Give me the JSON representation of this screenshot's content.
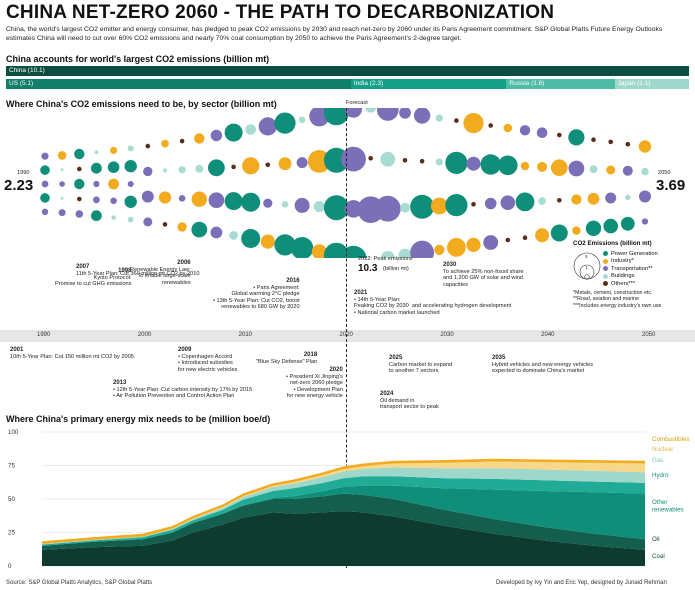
{
  "title": "CHINA NET-ZERO 2060 - THE PATH TO DECARBONIZATION",
  "intro": "China, the world's largest CO2 emitter and energy consumer, has pledged to peak CO2 emissions by 2030 and reach net-zero by 2060 under its Paris Agreement commitment. S&P Global Platts Future Energy Outlooks estimates China will need to cut over 60% CO2 emissions and nearly 70% coal consumption by 2050 to achieve the Paris Agreement's 2-degree target.",
  "colors": {
    "dark_teal": "#0b4e40",
    "teal": "#0f8f7a",
    "mid_teal": "#1aa48d",
    "light_teal": "#8fd1c3",
    "yellow": "#f2ab1f",
    "purple": "#7b6fb8",
    "pale": "#a8dbd1",
    "brown": "#5a2d16"
  },
  "emitters": {
    "title": "China accounts for world's largest CO2 emissions (billion mt)",
    "bars": [
      {
        "label": "China (10.1)",
        "value": 10.1,
        "color": "#0b4e40"
      },
      {
        "label": "US (5.1)",
        "value": 5.1,
        "color": "#0f7f6a"
      },
      {
        "label": "India (2.3)",
        "value": 2.3,
        "color": "#14a088"
      },
      {
        "label": "Russia (1.6)",
        "value": 1.6,
        "color": "#4cbca6"
      },
      {
        "label": "Japan (1.1)",
        "value": 1.1,
        "color": "#9fd7cb"
      }
    ]
  },
  "sector": {
    "title": "Where China's CO2 emissions need to be, by sector (billion mt)",
    "forecast_label": "Forecast",
    "start_year": "1990",
    "start_value": "2.23",
    "end_year": "2050",
    "end_value": "3.69",
    "peak_label": "2022: Peak emissions",
    "peak_value": "10.3",
    "peak_unit": "(billion mt)",
    "legend_title": "CO2 Emissions (billion mt)",
    "legend_scale": [
      "5",
      "1",
      ".1"
    ],
    "legend": [
      {
        "label": "Power Generation",
        "color": "#0f8f7a"
      },
      {
        "label": "Industry*",
        "color": "#f2ab1f"
      },
      {
        "label": "Transportation**",
        "color": "#7b6fb8"
      },
      {
        "label": "Buildings",
        "color": "#a8dbd1"
      },
      {
        "label": "Others***",
        "color": "#5a2d16"
      }
    ],
    "notes": [
      "*Metals, cement, construction etc.",
      "**Road, aviation and marine",
      "***Includes energy industry's own use"
    ]
  },
  "timeline": {
    "ticks": [
      "1990",
      "2000",
      "2010",
      "2020",
      "2030",
      "2040",
      "2050"
    ],
    "above": [
      {
        "year": "1998",
        "text": "Kyoto Protocol:\nPromise to cut GHG emissions"
      },
      {
        "year": "2006",
        "text": "Renewable Energy Law:\nTo enable large-scale\nrenewables"
      },
      {
        "year": "2007",
        "text": "11th 5-Year Plan: Cut 360 million mt CO2 by 2010"
      },
      {
        "year": "2016",
        "text": "• Paris Agreement:\nGlobal warming 2°C pledge\n• 13th 5-Year Plan: Cut CO2, boost\nrenewables to 680 GW by 2020"
      },
      {
        "year": "2021",
        "text": "• 14th 5-Year Plan:\nPeaking CO2 by 2030  and accelerating hydrogen development\n• National carbon market launched"
      },
      {
        "year": "2030",
        "text": "To achieve 25% non-fossil share\nand 1,200 GW of solar and wind\ncapacities"
      }
    ],
    "below": [
      {
        "year": "2001",
        "text": "10th 5-Year Plan: Cut 150 million mt CO2 by 2005"
      },
      {
        "year": "2009",
        "text": "• Copenhagen Accord\n• Introduced subsidies\nfor new electric vehicles"
      },
      {
        "year": "2013",
        "text": "• 12th 5-Year Plan: Cut carbon intensity by 17% by 2015\n• Air Pollution Prevention and Control Action Plan"
      },
      {
        "year": "2018",
        "text": "\"Blue Sky Defense\" Plan"
      },
      {
        "year": "2020",
        "text": "• President Xi Jinping's\nnet-zero 2060 pledge\n• Development Plan\nfor new energy vehicle"
      },
      {
        "year": "2025",
        "text": "Carbon market to expand\nto another 7 sectors"
      },
      {
        "year": "2024",
        "text": "Oil demand in\ntransport sector to peak"
      },
      {
        "year": "2035",
        "text": "Hybrid vehicles and new energy vehicles\nexpected to dominate China's market"
      }
    ]
  },
  "chart_data": {
    "type": "area",
    "title": "Where China's primary energy mix needs to be (million boe/d)",
    "x": [
      1990,
      1995,
      2000,
      2003,
      2005,
      2008,
      2010,
      2013,
      2015,
      2018,
      2020,
      2022,
      2025,
      2030,
      2035,
      2040,
      2045,
      2050
    ],
    "ylim": [
      0,
      100
    ],
    "yticks": [
      "100",
      "75",
      "50",
      "25",
      "0"
    ],
    "xticks": [
      "1990",
      "2000",
      "2010",
      "2020",
      "2030",
      "2040",
      "2050"
    ],
    "series": [
      {
        "name": "Coal",
        "color": "#0d3b2f",
        "values": [
          12,
          14,
          15,
          19,
          25,
          31,
          36,
          40,
          39,
          40,
          41,
          40,
          37,
          30,
          24,
          19,
          15,
          12
        ]
      },
      {
        "name": "Oil",
        "color": "#135e4c",
        "values": [
          3,
          4,
          5,
          6,
          7,
          8,
          9,
          10,
          11,
          12,
          13,
          13,
          13,
          12,
          11,
          10,
          9,
          8
        ]
      },
      {
        "name": "Other renewables",
        "color": "#0f8f7a",
        "values": [
          0,
          0,
          0,
          0,
          0,
          0,
          0.5,
          1,
          2,
          4,
          5,
          7,
          10,
          16,
          22,
          27,
          31,
          34
        ]
      },
      {
        "name": "Hydro",
        "color": "#20ab96",
        "values": [
          1,
          1,
          1.5,
          2,
          2,
          3,
          4,
          5,
          6,
          6,
          6.5,
          7,
          7,
          7.5,
          8,
          8,
          8,
          8
        ]
      },
      {
        "name": "Gas",
        "color": "#9fd7cb",
        "values": [
          0.5,
          0.5,
          0.5,
          0.7,
          1,
          1.5,
          2,
          3,
          3.5,
          4.5,
          5,
          5.5,
          6.5,
          7.5,
          8,
          8,
          8,
          8
        ]
      },
      {
        "name": "Nuclear",
        "color": "#f7d88a",
        "values": [
          0,
          0,
          0,
          0.2,
          0.3,
          0.5,
          0.6,
          0.8,
          1,
          1.5,
          1.8,
          2,
          3,
          4,
          5,
          5.5,
          6,
          6.5
        ]
      },
      {
        "name": "Combustibles",
        "color": "#f2ab1f",
        "values": [
          2,
          2,
          2,
          2,
          2,
          2,
          2,
          2,
          2,
          2,
          2,
          2,
          2,
          2,
          2,
          2,
          2,
          2
        ]
      }
    ]
  },
  "footer": {
    "source": "Source: S&P Global Platts Analytics, S&P Global Platts",
    "credit": "Developed by Ivy Yin and Eric Yep, designed by Junaid Rehman"
  }
}
